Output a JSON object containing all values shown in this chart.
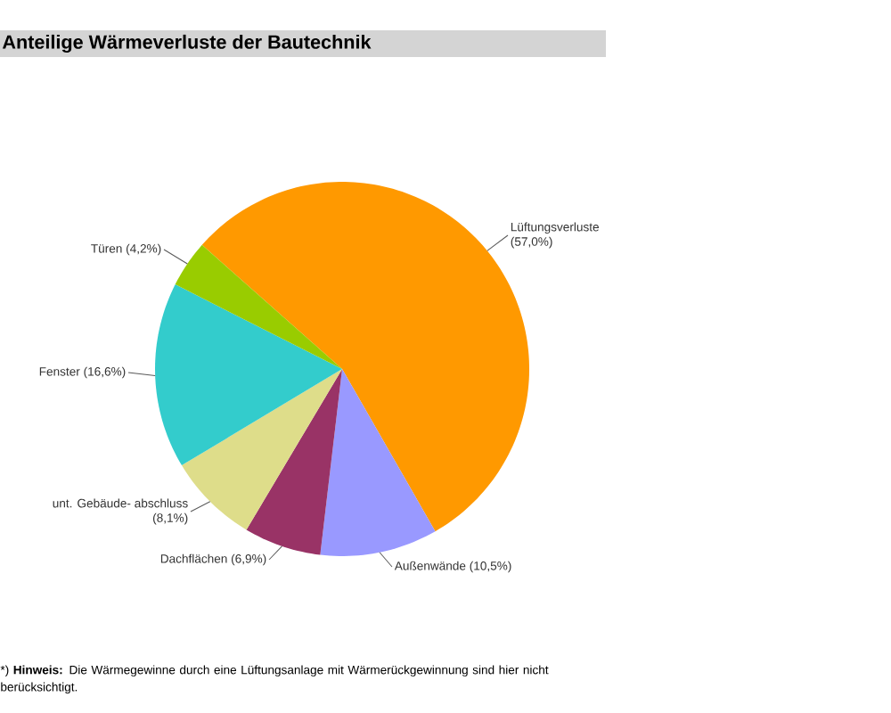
{
  "chart_data": {
    "type": "pie",
    "title": "Anteilige Wärmeverluste der Bautechnik",
    "categories": [
      "Lüftungsverluste",
      "Außenwände",
      "Dachflächen",
      "unt. Gebäude- abschluss",
      "Fenster",
      "Türen"
    ],
    "values": [
      57.0,
      10.5,
      6.9,
      8.1,
      16.6,
      4.2
    ],
    "value_labels": [
      "(57,0%)",
      "(10,5%)",
      "(6,9%)",
      "(8,1%)",
      "(16,6%)",
      "(4,2%)"
    ],
    "colors": [
      "#ff9900",
      "#9999ff",
      "#993366",
      "#dedd8a",
      "#33cccc",
      "#99cc00"
    ],
    "annotations": [
      "*) **Hinweis:** Die Wärmegewinne durch eine Lüftungsanlage mit Wärmerückgewinnung sind hier nicht berücksichtigt."
    ]
  }
}
